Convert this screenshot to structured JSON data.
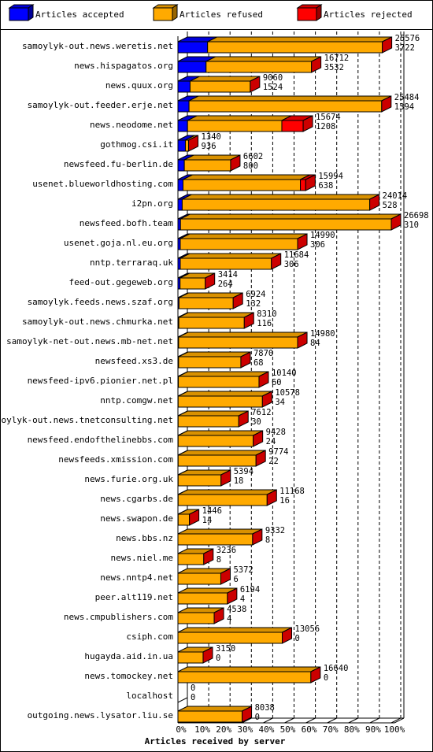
{
  "chart_data": {
    "type": "bar3d",
    "x_label": "Articles received by server",
    "legend": "top",
    "categories": [
      "samoylyk-out.news.weretis.net",
      "news.hispagatos.org",
      "news.quux.org",
      "samoylyk-out.feeder.erje.net",
      "news.neodome.net",
      "gothmog.csi.it",
      "newsfeed.fu-berlin.de",
      "usenet.blueworldhosting.com",
      "i2pn.org",
      "newsfeed.bofh.team",
      "usenet.goja.nl.eu.org",
      "nntp.terraraq.uk",
      "feed-out.gegeweb.org",
      "samoylyk.feeds.news.szaf.org",
      "samoylyk-out.news.chmurka.net",
      "samoylyk-net-out.news.mb-net.net",
      "newsfeed.xs3.de",
      "newsfeed-ipv6.pionier.net.pl",
      "nntp.comgw.net",
      "samoylyk-out.news.tnetconsulting.net",
      "newsfeed.endofthelinebbs.com",
      "newsfeeds.xmission.com",
      "news.furie.org.uk",
      "news.cgarbs.de",
      "news.swapon.de",
      "news.bbs.nz",
      "news.niel.me",
      "news.nntp4.net",
      "peer.alt119.net",
      "news.cmpublishers.com",
      "csiph.com",
      "hugayda.aid.in.ua",
      "news.tomockey.net",
      "localhost",
      "outgoing.news.lysator.liu.se"
    ],
    "series": [
      {
        "name": "Articles accepted",
        "color": "#0000ff",
        "values": [
          13.9,
          13.2,
          5.7,
          5.2,
          4.5,
          3.5,
          3.0,
          2.4,
          2.0,
          1.2,
          1.1,
          1.1,
          1.0,
          0.5,
          0.4,
          0.3,
          0.3,
          0.2,
          0.1,
          0.1,
          0.1,
          0.1,
          0.1,
          0.1,
          0.1,
          0,
          0,
          0,
          0,
          0,
          0,
          0,
          0,
          0,
          0
        ]
      },
      {
        "name": "Articles refused",
        "color": "#ffaa00",
        "values": [
          81.9,
          49.4,
          28.2,
          90.3,
          44.2,
          1.5,
          21.7,
          55.0,
          87.9,
          98.8,
          55.0,
          42.7,
          11.8,
          25.4,
          30.7,
          55.8,
          29.2,
          37.8,
          39.5,
          28.4,
          35.2,
          36.5,
          20.1,
          41.7,
          5.3,
          35.0,
          12.1,
          20.1,
          23.2,
          17.0,
          48.9,
          11.8,
          62.3,
          0,
          30.1
        ]
      },
      {
        "name": "Articles rejected",
        "color": "#ff0000",
        "values": [
          0,
          0,
          0,
          0,
          10,
          0,
          0,
          2.5,
          0,
          0,
          0,
          0,
          0,
          0,
          0,
          0,
          0,
          0,
          0,
          0,
          0,
          0,
          0,
          0,
          0,
          0,
          0,
          0,
          0,
          0,
          0,
          0,
          0,
          0,
          0
        ]
      }
    ],
    "totals": [
      25576,
      16712,
      9060,
      25484,
      15674,
      1340,
      6602,
      15994,
      24014,
      26698,
      14990,
      11684,
      3414,
      6924,
      8310,
      14980,
      7870,
      10140,
      10578,
      7612,
      9428,
      9774,
      5394,
      11168,
      1446,
      9332,
      3236,
      5372,
      6194,
      4538,
      13056,
      3150,
      16640,
      0,
      8038
    ],
    "accepted_counts": [
      3722,
      3532,
      1524,
      1394,
      1208,
      936,
      800,
      638,
      528,
      310,
      306,
      306,
      264,
      132,
      116,
      84,
      68,
      60,
      34,
      30,
      24,
      22,
      18,
      16,
      14,
      8,
      8,
      6,
      4,
      4,
      0,
      0,
      0,
      0,
      0
    ],
    "xlim": [
      0,
      100
    ],
    "xticks": [
      {
        "value": 0,
        "label": "0%"
      },
      {
        "value": 10,
        "label": "10%"
      },
      {
        "value": 20,
        "label": "20%"
      },
      {
        "value": 30,
        "label": "30%"
      },
      {
        "value": 40,
        "label": "40%"
      },
      {
        "value": 50,
        "label": "50%"
      },
      {
        "value": 60,
        "label": "60%"
      },
      {
        "value": 70,
        "label": "70%"
      },
      {
        "value": 80,
        "label": "80%"
      },
      {
        "value": 90,
        "label": "90%"
      },
      {
        "value": 100,
        "label": "100%"
      }
    ],
    "grid": true
  }
}
